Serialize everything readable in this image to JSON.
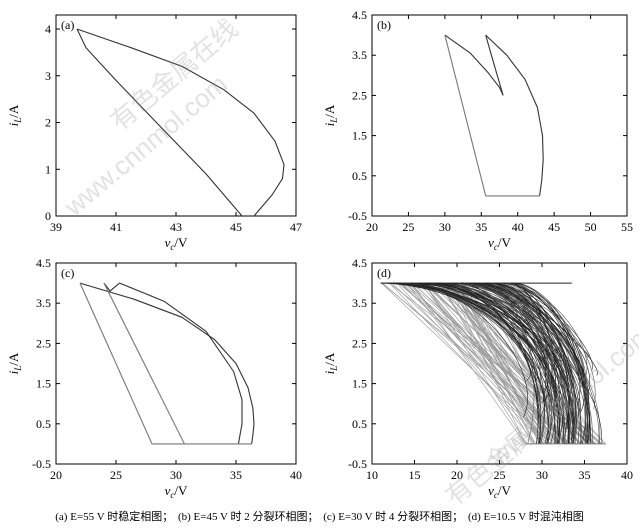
{
  "watermark": {
    "text_cn": "有色金属在线",
    "text_url": "www.cnnmol.com"
  },
  "caption": [
    "(a) E=55 V 时稳定相图；",
    "(b) E=45 V 时 2 分裂环相图；",
    "(c) E=30 V 时 4 分裂环相图；",
    "(d) E=10.5 V 时混沌相图"
  ],
  "chart_data": [
    {
      "type": "line",
      "panel_label": "(a)",
      "xlabel": "v_c/V",
      "ylabel": "i_L/A",
      "xlim": [
        39,
        47
      ],
      "ylim": [
        0,
        4.3
      ],
      "xticks": [
        39,
        41,
        43,
        45,
        47
      ],
      "yticks": [
        0,
        1,
        2,
        3,
        4
      ],
      "series": [
        {
          "color": "#333333",
          "x": [
            39.7,
            41.5,
            43.2,
            44.6,
            45.6,
            46.3,
            46.6,
            46.55,
            46.2,
            45.8,
            45.6
          ],
          "y": [
            4.0,
            3.6,
            3.2,
            2.7,
            2.2,
            1.6,
            1.1,
            0.8,
            0.45,
            0.15,
            0.0
          ]
        },
        {
          "color": "#333333",
          "x": [
            45.2,
            44.0,
            42.5,
            41.0,
            40.0,
            39.7
          ],
          "y": [
            0.0,
            0.9,
            1.9,
            2.9,
            3.6,
            4.0
          ]
        }
      ]
    },
    {
      "type": "line",
      "panel_label": "(b)",
      "xlabel": "v_c/V",
      "ylabel": "i_L/A",
      "xlim": [
        20,
        55
      ],
      "ylim": [
        -0.5,
        4.5
      ],
      "xticks": [
        20,
        25,
        30,
        35,
        40,
        45,
        50,
        55
      ],
      "yticks": [
        -0.5,
        0.5,
        1.5,
        2.5,
        3.5,
        4.5
      ],
      "series": [
        {
          "color": "#333333",
          "x": [
            30.0,
            33.5,
            36.0,
            37.5,
            38.0
          ],
          "y": [
            4.0,
            3.55,
            3.05,
            2.7,
            2.5
          ]
        },
        {
          "color": "#333333",
          "x": [
            38.0,
            36.7,
            35.6
          ],
          "y": [
            2.5,
            3.3,
            4.0
          ]
        },
        {
          "color": "#333333",
          "x": [
            35.6,
            38.5,
            41.0,
            42.7,
            43.4,
            43.5,
            43.3,
            43.0
          ],
          "y": [
            4.0,
            3.5,
            2.9,
            2.2,
            1.5,
            0.9,
            0.4,
            0.0
          ]
        },
        {
          "color": "#777777",
          "x": [
            43.0,
            35.6,
            30.0
          ],
          "y": [
            0.0,
            0.0,
            4.0
          ]
        }
      ]
    },
    {
      "type": "line",
      "panel_label": "(c)",
      "xlabel": "v_c/V",
      "ylabel": "i_L/A",
      "xlim": [
        20,
        40
      ],
      "ylim": [
        -0.5,
        4.5
      ],
      "xticks": [
        20,
        25,
        30,
        35,
        40
      ],
      "yticks": [
        -0.5,
        0.5,
        1.5,
        2.5,
        3.5,
        4.5
      ],
      "series": [
        {
          "color": "#333333",
          "x": [
            22.0,
            26.5,
            30.5,
            33.2,
            35.0,
            36.0,
            36.4,
            36.5,
            36.4,
            36.3
          ],
          "y": [
            4.0,
            3.6,
            3.15,
            2.6,
            2.0,
            1.4,
            0.9,
            0.5,
            0.2,
            0.0
          ]
        },
        {
          "color": "#333333",
          "x": [
            25.3,
            29.0,
            32.5,
            34.8,
            35.5,
            35.5,
            35.2
          ],
          "y": [
            4.0,
            3.55,
            2.8,
            1.8,
            1.1,
            0.5,
            0.0
          ]
        },
        {
          "color": "#333333",
          "x": [
            24.0,
            24.5,
            25.3
          ],
          "y": [
            4.0,
            3.8,
            4.0
          ]
        },
        {
          "color": "#777777",
          "x": [
            36.3,
            28.0,
            22.0
          ],
          "y": [
            0.0,
            0.0,
            4.0
          ]
        },
        {
          "color": "#777777",
          "x": [
            30.7,
            24.0
          ],
          "y": [
            0.0,
            4.0
          ]
        }
      ]
    },
    {
      "type": "line",
      "panel_label": "(d)",
      "xlabel": "v_c/V",
      "ylabel": "i_L/A",
      "xlim": [
        10,
        40
      ],
      "ylim": [
        -0.5,
        4.5
      ],
      "xticks": [
        10,
        15,
        20,
        25,
        30,
        35,
        40
      ],
      "yticks": [
        -0.5,
        0.5,
        1.5,
        2.5,
        3.5,
        4.5
      ],
      "chaotic_region": {
        "xmin": 11,
        "xmax": 37.5,
        "ymin": 0,
        "ymax": 4
      }
    }
  ]
}
